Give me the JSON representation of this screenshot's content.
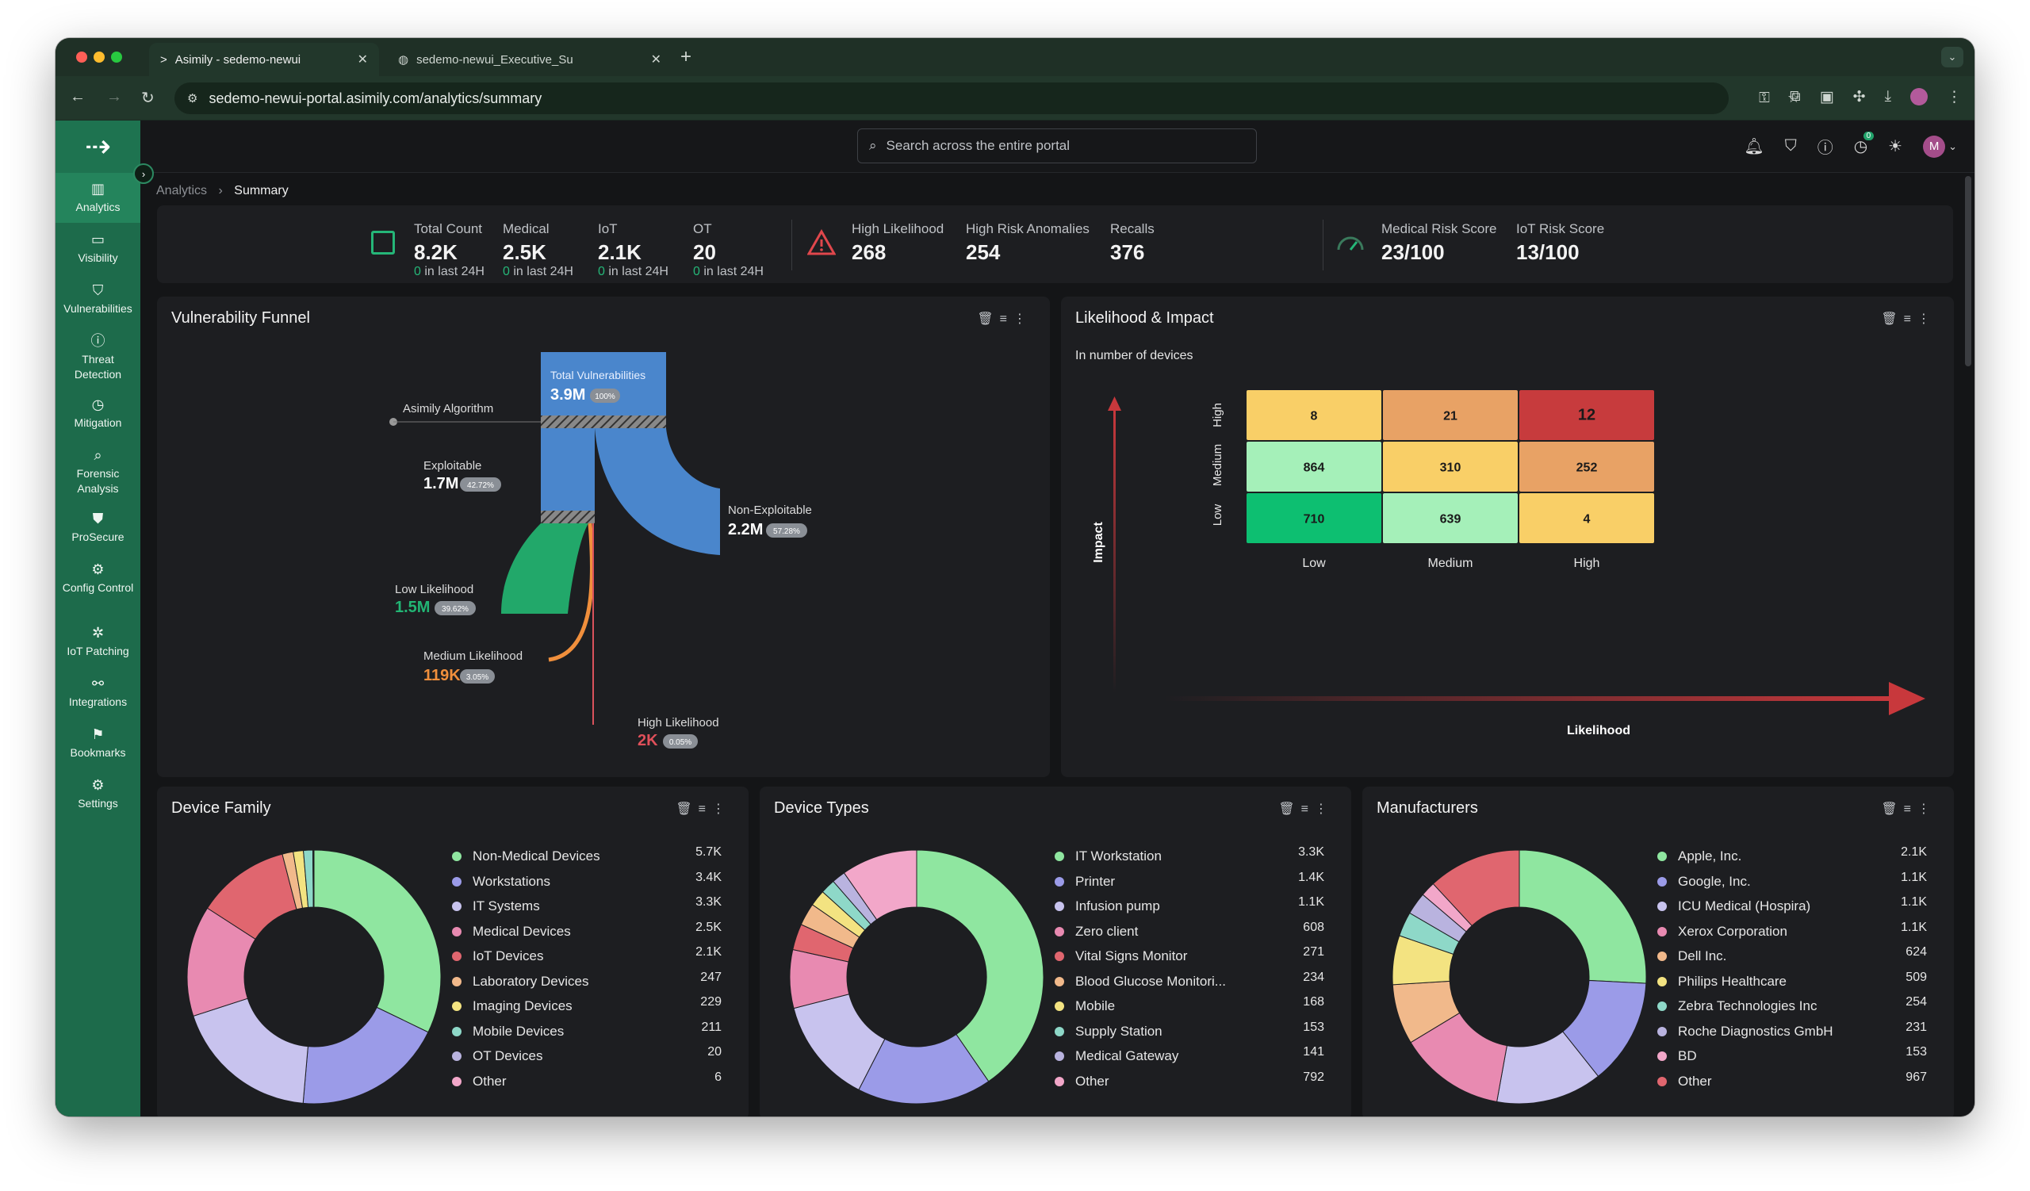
{
  "browser": {
    "tab1_title": "Asimily - sedemo-newui",
    "tab2_title": "sedemo-newui_Executive_Su",
    "url": "sedemo-newui-portal.asimily.com/analytics/summary"
  },
  "sidebar": {
    "items": [
      {
        "label": "Analytics",
        "icon": "bar-chart-icon"
      },
      {
        "label": "Visibility",
        "icon": "monitor-icon"
      },
      {
        "label": "Vulnerabilities",
        "icon": "shield-icon"
      },
      {
        "label": "Threat Detection",
        "icon": "alert-circle-icon"
      },
      {
        "label": "Mitigation",
        "icon": "clock-icon"
      },
      {
        "label": "Forensic Analysis",
        "icon": "magnifier-icon"
      },
      {
        "label": "ProSecure",
        "icon": "shield-check-icon"
      },
      {
        "label": "Config Control",
        "icon": "gear-circle-icon"
      },
      {
        "label": "IoT Patching",
        "icon": "patch-icon"
      },
      {
        "label": "Integrations",
        "icon": "link-icon"
      },
      {
        "label": "Bookmarks",
        "icon": "bookmark-icon"
      },
      {
        "label": "Settings",
        "icon": "settings-icon"
      }
    ]
  },
  "search": {
    "placeholder": "Search across the entire portal"
  },
  "notifications_badge": "0",
  "avatar_letter": "M",
  "breadcrumb": {
    "root": "Analytics",
    "current": "Summary"
  },
  "stats": {
    "total_count": {
      "label": "Total Count",
      "value": "8.2K",
      "count": "0",
      "sub": "in last 24H"
    },
    "medical": {
      "label": "Medical",
      "value": "2.5K",
      "count": "0",
      "sub": "in last 24H"
    },
    "iot": {
      "label": "IoT",
      "value": "2.1K",
      "count": "0",
      "sub": "in last 24H"
    },
    "ot": {
      "label": "OT",
      "value": "20",
      "count": "0",
      "sub": "in last 24H"
    },
    "high_likelihood": {
      "label": "High Likelihood",
      "value": "268"
    },
    "high_risk_anomalies": {
      "label": "High Risk Anomalies",
      "value": "254"
    },
    "recalls": {
      "label": "Recalls",
      "value": "376"
    },
    "medical_risk": {
      "label": "Medical Risk Score",
      "value": "23/100"
    },
    "iot_risk": {
      "label": "IoT Risk Score",
      "value": "13/100"
    }
  },
  "funnel": {
    "title": "Vulnerability Funnel",
    "algorithm_label": "Asimily Algorithm",
    "total": {
      "label": "Total Vulnerabilities",
      "value": "3.9M",
      "pct": "100%"
    },
    "exploitable": {
      "label": "Exploitable",
      "value": "1.7M",
      "pct": "42.72%"
    },
    "non_exploitable": {
      "label": "Non-Exploitable",
      "value": "2.2M",
      "pct": "57.28%"
    },
    "low": {
      "label": "Low Likelihood",
      "value": "1.5M",
      "pct": "39.62%"
    },
    "medium": {
      "label": "Medium Likelihood",
      "value": "119K",
      "pct": "3.05%"
    },
    "high": {
      "label": "High Likelihood",
      "value": "2K",
      "pct": "0.05%"
    }
  },
  "matrix": {
    "title": "Likelihood & Impact",
    "subtitle": "In number of devices",
    "y_axis": "Impact",
    "x_axis": "Likelihood",
    "rows": [
      "High",
      "Medium",
      "Low"
    ],
    "cols": [
      "Low",
      "Medium",
      "High"
    ],
    "values": [
      [
        "8",
        "21",
        "12"
      ],
      [
        "864",
        "310",
        "252"
      ],
      [
        "710",
        "639",
        "4"
      ]
    ],
    "colors": [
      [
        "#f9cf67",
        "#e8a265",
        "#c73b3d"
      ],
      [
        "#a5f0b9",
        "#f9cf67",
        "#e8a265"
      ],
      [
        "#0dbf71",
        "#a5f0b9",
        "#f9cf67"
      ]
    ]
  },
  "device_family": {
    "title": "Device Family",
    "items": [
      {
        "label": "Non-Medical Devices",
        "value": "5.7K",
        "num": 5700,
        "color": "#8fe6a0"
      },
      {
        "label": "Workstations",
        "value": "3.4K",
        "num": 3400,
        "color": "#9b9be8"
      },
      {
        "label": "IT Systems",
        "value": "3.3K",
        "num": 3300,
        "color": "#c8c3ee"
      },
      {
        "label": "Medical Devices",
        "value": "2.5K",
        "num": 2500,
        "color": "#e88ab1"
      },
      {
        "label": "IoT Devices",
        "value": "2.1K",
        "num": 2100,
        "color": "#e0666f"
      },
      {
        "label": "Laboratory Devices",
        "value": "247",
        "num": 247,
        "color": "#f1b98b"
      },
      {
        "label": "Imaging Devices",
        "value": "229",
        "num": 229,
        "color": "#f3e381"
      },
      {
        "label": "Mobile Devices",
        "value": "211",
        "num": 211,
        "color": "#8ed8c8"
      },
      {
        "label": "OT Devices",
        "value": "20",
        "num": 20,
        "color": "#b9b3df"
      },
      {
        "label": "Other",
        "value": "6",
        "num": 6,
        "color": "#f2a7c9"
      }
    ]
  },
  "device_types": {
    "title": "Device Types",
    "items": [
      {
        "label": "IT Workstation",
        "value": "3.3K",
        "num": 3300,
        "color": "#8fe6a0"
      },
      {
        "label": "Printer",
        "value": "1.4K",
        "num": 1400,
        "color": "#9b9be8"
      },
      {
        "label": "Infusion pump",
        "value": "1.1K",
        "num": 1100,
        "color": "#c8c3ee"
      },
      {
        "label": "Zero client",
        "value": "608",
        "num": 608,
        "color": "#e88ab1"
      },
      {
        "label": "Vital Signs Monitor",
        "value": "271",
        "num": 271,
        "color": "#e0666f"
      },
      {
        "label": "Blood Glucose Monitori...",
        "value": "234",
        "num": 234,
        "color": "#f1b98b"
      },
      {
        "label": "Mobile",
        "value": "168",
        "num": 168,
        "color": "#f3e381"
      },
      {
        "label": "Supply Station",
        "value": "153",
        "num": 153,
        "color": "#8ed8c8"
      },
      {
        "label": "Medical Gateway",
        "value": "141",
        "num": 141,
        "color": "#b9b3df"
      },
      {
        "label": "Other",
        "value": "792",
        "num": 792,
        "color": "#f2a7c9"
      }
    ]
  },
  "manufacturers": {
    "title": "Manufacturers",
    "items": [
      {
        "label": "Apple, Inc.",
        "value": "2.1K",
        "num": 2100,
        "color": "#8fe6a0"
      },
      {
        "label": "Google, Inc.",
        "value": "1.1K",
        "num": 1100,
        "color": "#9b9be8"
      },
      {
        "label": "ICU Medical (Hospira)",
        "value": "1.1K",
        "num": 1100,
        "color": "#c8c3ee"
      },
      {
        "label": "Xerox Corporation",
        "value": "1.1K",
        "num": 1100,
        "color": "#e88ab1"
      },
      {
        "label": "Dell Inc.",
        "value": "624",
        "num": 624,
        "color": "#f1b98b"
      },
      {
        "label": "Philips Healthcare",
        "value": "509",
        "num": 509,
        "color": "#f3e381"
      },
      {
        "label": "Zebra Technologies Inc",
        "value": "254",
        "num": 254,
        "color": "#8ed8c8"
      },
      {
        "label": "Roche Diagnostics GmbH",
        "value": "231",
        "num": 231,
        "color": "#b9b3df"
      },
      {
        "label": "BD",
        "value": "153",
        "num": 153,
        "color": "#f2a7c9"
      },
      {
        "label": "Other",
        "value": "967",
        "num": 967,
        "color": "#e0666f"
      }
    ]
  }
}
